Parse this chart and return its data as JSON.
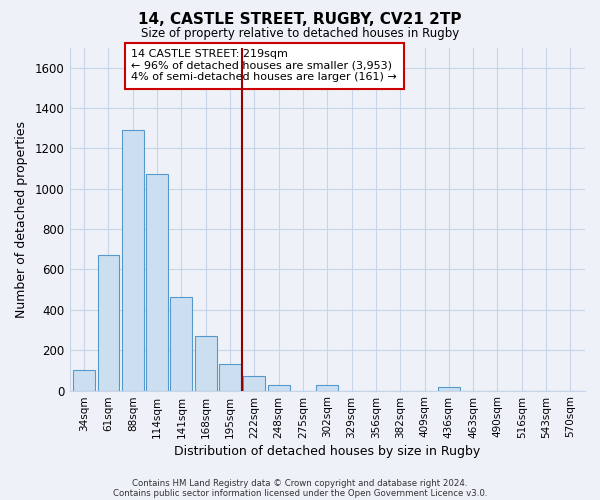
{
  "title": "14, CASTLE STREET, RUGBY, CV21 2TP",
  "subtitle": "Size of property relative to detached houses in Rugby",
  "xlabel": "Distribution of detached houses by size in Rugby",
  "ylabel": "Number of detached properties",
  "bar_color": "#ccdff0",
  "bar_edge_color": "#5599cc",
  "categories": [
    "34sqm",
    "61sqm",
    "88sqm",
    "114sqm",
    "141sqm",
    "168sqm",
    "195sqm",
    "222sqm",
    "248sqm",
    "275sqm",
    "302sqm",
    "329sqm",
    "356sqm",
    "382sqm",
    "409sqm",
    "436sqm",
    "463sqm",
    "490sqm",
    "516sqm",
    "543sqm",
    "570sqm"
  ],
  "values": [
    100,
    670,
    1290,
    1075,
    465,
    268,
    130,
    73,
    30,
    0,
    30,
    0,
    0,
    0,
    0,
    18,
    0,
    0,
    0,
    0,
    0
  ],
  "ylim": [
    0,
    1700
  ],
  "yticks": [
    0,
    200,
    400,
    600,
    800,
    1000,
    1200,
    1400,
    1600
  ],
  "vline_x": 7.0,
  "vline_color": "#990000",
  "annotation_title": "14 CASTLE STREET: 219sqm",
  "annotation_line1": "← 96% of detached houses are smaller (3,953)",
  "annotation_line2": "4% of semi-detached houses are larger (161) →",
  "footer1": "Contains HM Land Registry data © Crown copyright and database right 2024.",
  "footer2": "Contains public sector information licensed under the Open Government Licence v3.0.",
  "plot_bg_color": "#eef2f8",
  "grid_color": "#c8d4e8",
  "fig_bg_color": "#eef2f8"
}
